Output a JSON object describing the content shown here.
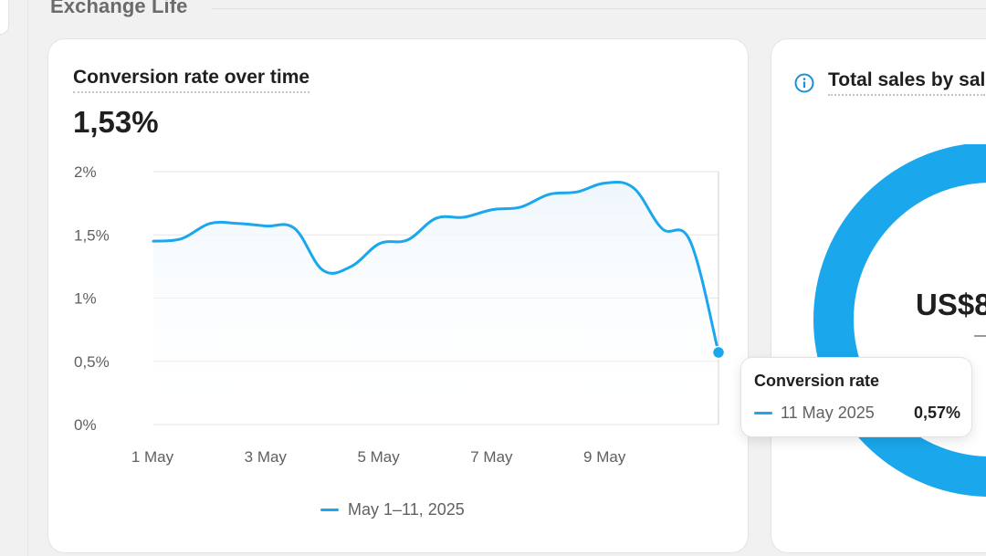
{
  "section": {
    "title": "Exchange Life"
  },
  "main_card": {
    "title": "Conversion rate over time",
    "value": "1,53%",
    "legend_label": "May 1–11, 2025"
  },
  "right_card": {
    "title": "Total sales by sal",
    "value": "US$8",
    "icon": "info-icon"
  },
  "tooltip": {
    "title": "Conversion rate",
    "date": "11 May 2025",
    "value": "0,57%"
  },
  "colors": {
    "accent": "#1aa7ec",
    "grid": "#e6e6e6",
    "axis_text": "#5f5f5f"
  },
  "chart_data": {
    "type": "line",
    "title": "Conversion rate over time",
    "xlabel": "",
    "ylabel": "",
    "ylim": [
      0,
      2
    ],
    "yticks": [
      0,
      0.5,
      1,
      1.5,
      2
    ],
    "ytick_labels": [
      "0%",
      "0,5%",
      "1%",
      "1,5%",
      "2%"
    ],
    "x_ticks": [
      1,
      3,
      5,
      7,
      9
    ],
    "x_tick_labels": [
      "1 May",
      "3 May",
      "5 May",
      "7 May",
      "9 May"
    ],
    "xlim": [
      1,
      11
    ],
    "grid": true,
    "legend_position": "bottom-center",
    "highlighted_point": {
      "x": 11,
      "y": 0.57
    },
    "series": [
      {
        "name": "May 1–11, 2025",
        "x": [
          1,
          1.5,
          2,
          2.5,
          3,
          3.5,
          4,
          4.5,
          5,
          5.5,
          6,
          6.5,
          7,
          7.5,
          8,
          8.5,
          9,
          9.5,
          10,
          10.5,
          11
        ],
        "y": [
          1.45,
          1.47,
          1.59,
          1.59,
          1.57,
          1.55,
          1.22,
          1.25,
          1.43,
          1.46,
          1.63,
          1.64,
          1.7,
          1.72,
          1.82,
          1.84,
          1.91,
          1.87,
          1.55,
          1.45,
          0.57
        ]
      }
    ]
  }
}
